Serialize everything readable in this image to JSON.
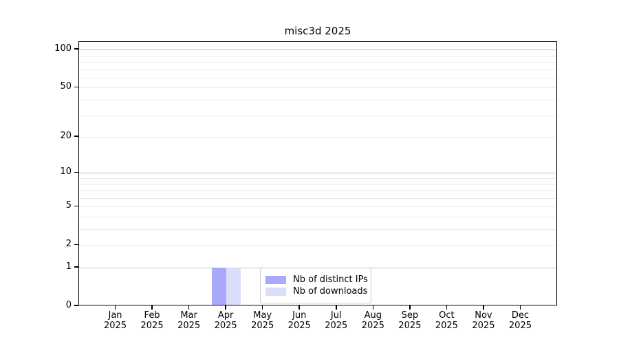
{
  "chart_data": {
    "type": "bar",
    "title": "misc3d 2025",
    "categories": [
      "Jan",
      "Feb",
      "Mar",
      "Apr",
      "May",
      "Jun",
      "Jul",
      "Aug",
      "Sep",
      "Oct",
      "Nov",
      "Dec"
    ],
    "category_year_label": "2025",
    "series": [
      {
        "name": "Nb of distinct IPs",
        "color": "#a9a9fb",
        "values": [
          0,
          0,
          0,
          1,
          0,
          0,
          0,
          0,
          0,
          0,
          0,
          0
        ]
      },
      {
        "name": "Nb of downloads",
        "color": "#dcdcfb",
        "values": [
          0,
          0,
          0,
          1,
          0,
          0,
          0,
          0,
          0,
          0,
          0,
          0
        ]
      }
    ],
    "xlabel": "",
    "ylabel": "",
    "y_scale": "log1p",
    "ylim": [
      0,
      115
    ],
    "y_tick_labels": [
      0,
      1,
      2,
      5,
      10,
      20,
      50,
      100
    ],
    "y_decade_gridlines": [
      1,
      10,
      100
    ],
    "y_minor_gridlines": [
      2,
      3,
      4,
      5,
      6,
      7,
      8,
      9,
      20,
      30,
      40,
      50,
      60,
      70,
      80,
      90
    ],
    "grid": "horizontal only",
    "legend_position": "lower center, inside axes",
    "colors": {
      "axis": "#000000",
      "grid_major": "#c3c3c3",
      "grid_minor": "#ebebeb",
      "legend_border": "#cccccc",
      "background": "#ffffff"
    }
  }
}
